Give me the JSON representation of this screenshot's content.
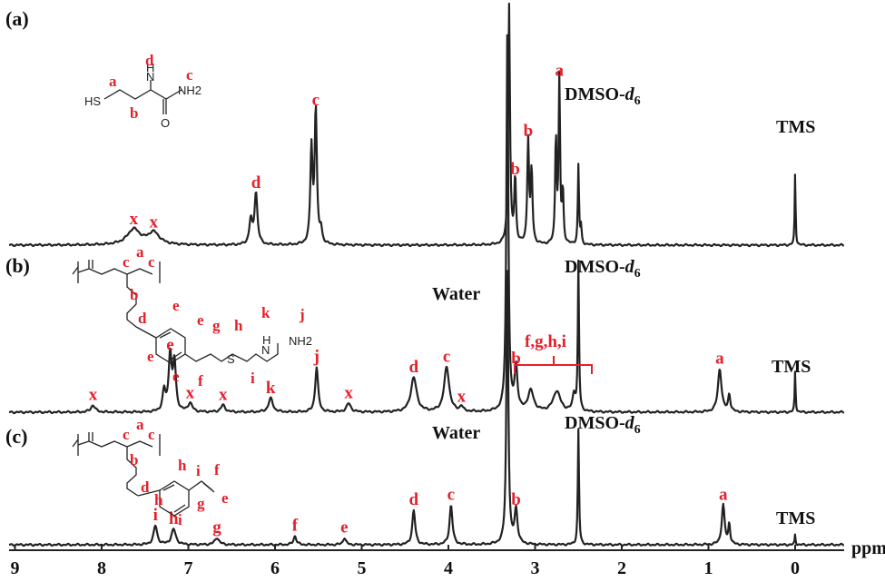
{
  "chart_data": {
    "type": "line",
    "xlabel": "ppm",
    "xlim": [
      9,
      -0.55
    ],
    "x_reversed": true,
    "xticks": [
      "9",
      "8",
      "7",
      "6",
      "5",
      "4",
      "3",
      "2",
      "1",
      "0"
    ],
    "panels": [
      {
        "label": "(a)",
        "structure_labels": [
          "a",
          "b",
          "d",
          "c",
          "HS",
          "N",
          "H",
          "O",
          "NH2"
        ],
        "peaks": [
          {
            "ppm": 7.63,
            "height": 0.09,
            "width": 0.09,
            "label": "x"
          },
          {
            "ppm": 7.4,
            "height": 0.07,
            "width": 0.08,
            "label": "x"
          },
          {
            "ppm": 6.28,
            "height": 0.14,
            "width": 0.02
          },
          {
            "ppm": 6.22,
            "height": 0.3,
            "width": 0.02,
            "label": "d"
          },
          {
            "ppm": 5.58,
            "height": 0.55,
            "width": 0.015
          },
          {
            "ppm": 5.53,
            "height": 0.78,
            "width": 0.015,
            "label": "c"
          },
          {
            "ppm": 5.47,
            "height": 0.08,
            "width": 0.015
          },
          {
            "ppm": 3.3,
            "height": 1.4,
            "width": 0.012
          },
          {
            "ppm": 3.23,
            "height": 0.38,
            "width": 0.012,
            "label": "b"
          },
          {
            "ppm": 3.08,
            "height": 0.6,
            "width": 0.012,
            "label": "b"
          },
          {
            "ppm": 3.04,
            "height": 0.42,
            "width": 0.012
          },
          {
            "ppm": 2.76,
            "height": 0.62,
            "width": 0.01
          },
          {
            "ppm": 2.72,
            "height": 0.95,
            "width": 0.01,
            "label": "a"
          },
          {
            "ppm": 2.68,
            "height": 0.3,
            "width": 0.01
          },
          {
            "ppm": 2.5,
            "height": 0.46,
            "width": 0.008
          },
          {
            "ppm": 2.47,
            "height": 0.1,
            "width": 0.008
          },
          {
            "ppm": 0.0,
            "height": 0.42,
            "width": 0.006
          }
        ],
        "annotations": [
          "DMSO-d6",
          "TMS"
        ]
      },
      {
        "label": "(b)",
        "structure_labels": [
          "c",
          "a",
          "c",
          "b",
          "d",
          "e",
          "e",
          "e",
          "e",
          "f",
          "g",
          "h",
          "i",
          "k",
          "j",
          "S",
          "N",
          "H",
          "NH2"
        ],
        "peaks": [
          {
            "ppm": 8.1,
            "height": 0.04,
            "width": 0.03,
            "label": "x"
          },
          {
            "ppm": 7.28,
            "height": 0.12,
            "width": 0.02
          },
          {
            "ppm": 7.21,
            "height": 0.33,
            "width": 0.02,
            "label": "e"
          },
          {
            "ppm": 7.16,
            "height": 0.28,
            "width": 0.02
          },
          {
            "ppm": 6.98,
            "height": 0.05,
            "width": 0.03,
            "label": "x"
          },
          {
            "ppm": 6.6,
            "height": 0.04,
            "width": 0.03,
            "label": "x"
          },
          {
            "ppm": 6.05,
            "height": 0.08,
            "width": 0.03,
            "label": "k"
          },
          {
            "ppm": 5.52,
            "height": 0.26,
            "width": 0.02,
            "label": "j"
          },
          {
            "ppm": 5.15,
            "height": 0.05,
            "width": 0.03,
            "label": "x"
          },
          {
            "ppm": 4.4,
            "height": 0.2,
            "width": 0.04,
            "label": "d"
          },
          {
            "ppm": 4.02,
            "height": 0.26,
            "width": 0.035,
            "label": "c"
          },
          {
            "ppm": 3.85,
            "height": 0.03,
            "width": 0.02,
            "label": "x"
          },
          {
            "ppm": 3.32,
            "height": 2.2,
            "width": 0.013
          },
          {
            "ppm": 3.22,
            "height": 0.25,
            "width": 0.02,
            "label": "b"
          },
          {
            "ppm": 3.05,
            "height": 0.12,
            "width": 0.04
          },
          {
            "ppm": 2.75,
            "height": 0.12,
            "width": 0.05
          },
          {
            "ppm": 2.55,
            "height": 0.1,
            "width": 0.02
          },
          {
            "ppm": 2.5,
            "height": 0.86,
            "width": 0.008
          },
          {
            "ppm": 0.87,
            "height": 0.25,
            "width": 0.025,
            "label": "a"
          },
          {
            "ppm": 0.76,
            "height": 0.1,
            "width": 0.015
          },
          {
            "ppm": 0.0,
            "height": 0.24,
            "width": 0.006
          }
        ],
        "annotations": [
          "Water",
          "DMSO-d6",
          "f,g,h,i",
          "TMS"
        ]
      },
      {
        "label": "(c)",
        "structure_labels": [
          "c",
          "a",
          "c",
          "b",
          "d",
          "h",
          "h",
          "i",
          "i",
          "f",
          "g",
          "e"
        ],
        "peaks": [
          {
            "ppm": 7.38,
            "height": 0.11,
            "width": 0.025,
            "label": "i"
          },
          {
            "ppm": 7.17,
            "height": 0.09,
            "width": 0.03,
            "label": "h"
          },
          {
            "ppm": 6.67,
            "height": 0.04,
            "width": 0.03,
            "label": "g"
          },
          {
            "ppm": 5.77,
            "height": 0.05,
            "width": 0.02,
            "label": "f"
          },
          {
            "ppm": 5.2,
            "height": 0.04,
            "width": 0.02,
            "label": "e"
          },
          {
            "ppm": 4.4,
            "height": 0.2,
            "width": 0.02,
            "label": "d"
          },
          {
            "ppm": 3.97,
            "height": 0.23,
            "width": 0.02,
            "label": "c"
          },
          {
            "ppm": 3.32,
            "height": 1.6,
            "width": 0.013
          },
          {
            "ppm": 3.22,
            "height": 0.2,
            "width": 0.02,
            "label": "b"
          },
          {
            "ppm": 2.5,
            "height": 0.67,
            "width": 0.008
          },
          {
            "ppm": 0.83,
            "height": 0.23,
            "width": 0.02,
            "label": "a"
          },
          {
            "ppm": 0.76,
            "height": 0.12,
            "width": 0.012
          },
          {
            "ppm": 0.0,
            "height": 0.06,
            "width": 0.006
          }
        ],
        "annotations": [
          "Water",
          "DMSO-d6",
          "TMS"
        ]
      }
    ]
  },
  "text": {
    "dmso_base": "DMSO-",
    "dmso_italic": "d",
    "dmso_sub": "6",
    "water": "Water",
    "tms": "TMS",
    "fghi": "f,g,h,i"
  }
}
